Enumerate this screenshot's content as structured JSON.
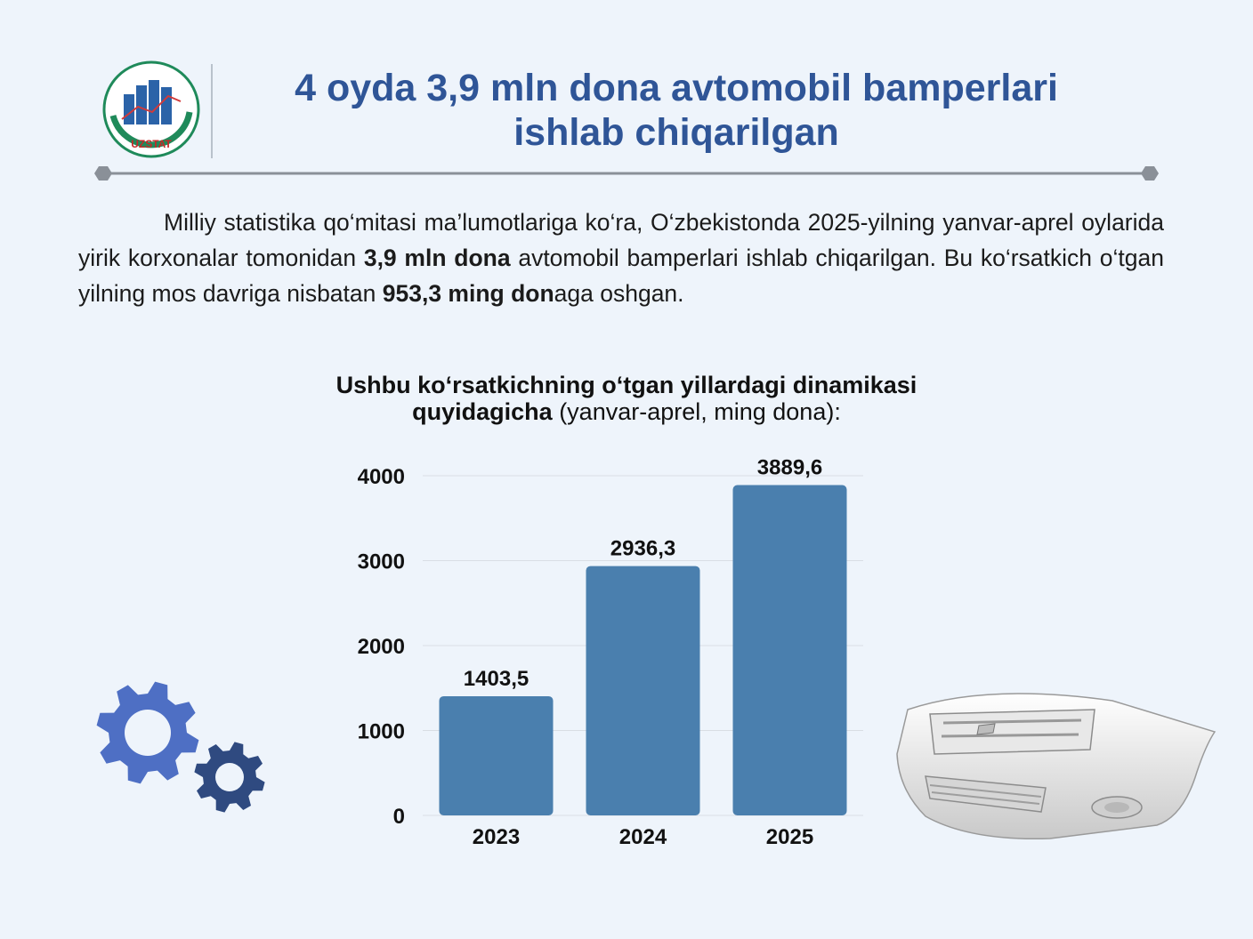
{
  "logo": {
    "text": "UZSTAT",
    "icon": "uzstat-logo-icon"
  },
  "title": {
    "line1": "4 oyda 3,9 mln dona avtomobil bamperlari",
    "line2": "ishlab chiqarilgan"
  },
  "intro": {
    "part1": "Milliy statistika qo‘mitasi ma’lumotlariga ko‘ra, O‘zbekistonda 2025-yilning yanvar-aprel oylarida yirik korxonalar tomonidan ",
    "bold1": "3,9 mln dona",
    "part2": " avtomobil bamperlari ishlab chiqarilgan. Bu ko‘rsatkich o‘tgan yilning mos davriga nisbatan ",
    "bold2": "953,3 ming don",
    "part3": "aga oshgan."
  },
  "chart_heading": {
    "bold": "Ushbu ko‘rsatkichning o‘tgan yillardagi dinamikasi quyidagicha",
    "normal": " (yanvar-aprel, ming dona):"
  },
  "colors": {
    "title": "#2f5597",
    "bar": "#4a7fae",
    "gear_large": "#4e6fc4",
    "gear_small": "#2f4a80"
  },
  "decor": {
    "gears": "gears-icon",
    "bumper": "car-bumper-image"
  },
  "chart_data": {
    "type": "bar",
    "categories": [
      "2023",
      "2024",
      "2025"
    ],
    "values": [
      1403.5,
      2936.3,
      3889.6
    ],
    "value_labels": [
      "1403,5",
      "2936,3",
      "3889,6"
    ],
    "y_ticks": [
      "0",
      "1000",
      "2000",
      "3000",
      "4000"
    ],
    "ylim": [
      0,
      4000
    ],
    "grid": true,
    "legend": "none"
  }
}
